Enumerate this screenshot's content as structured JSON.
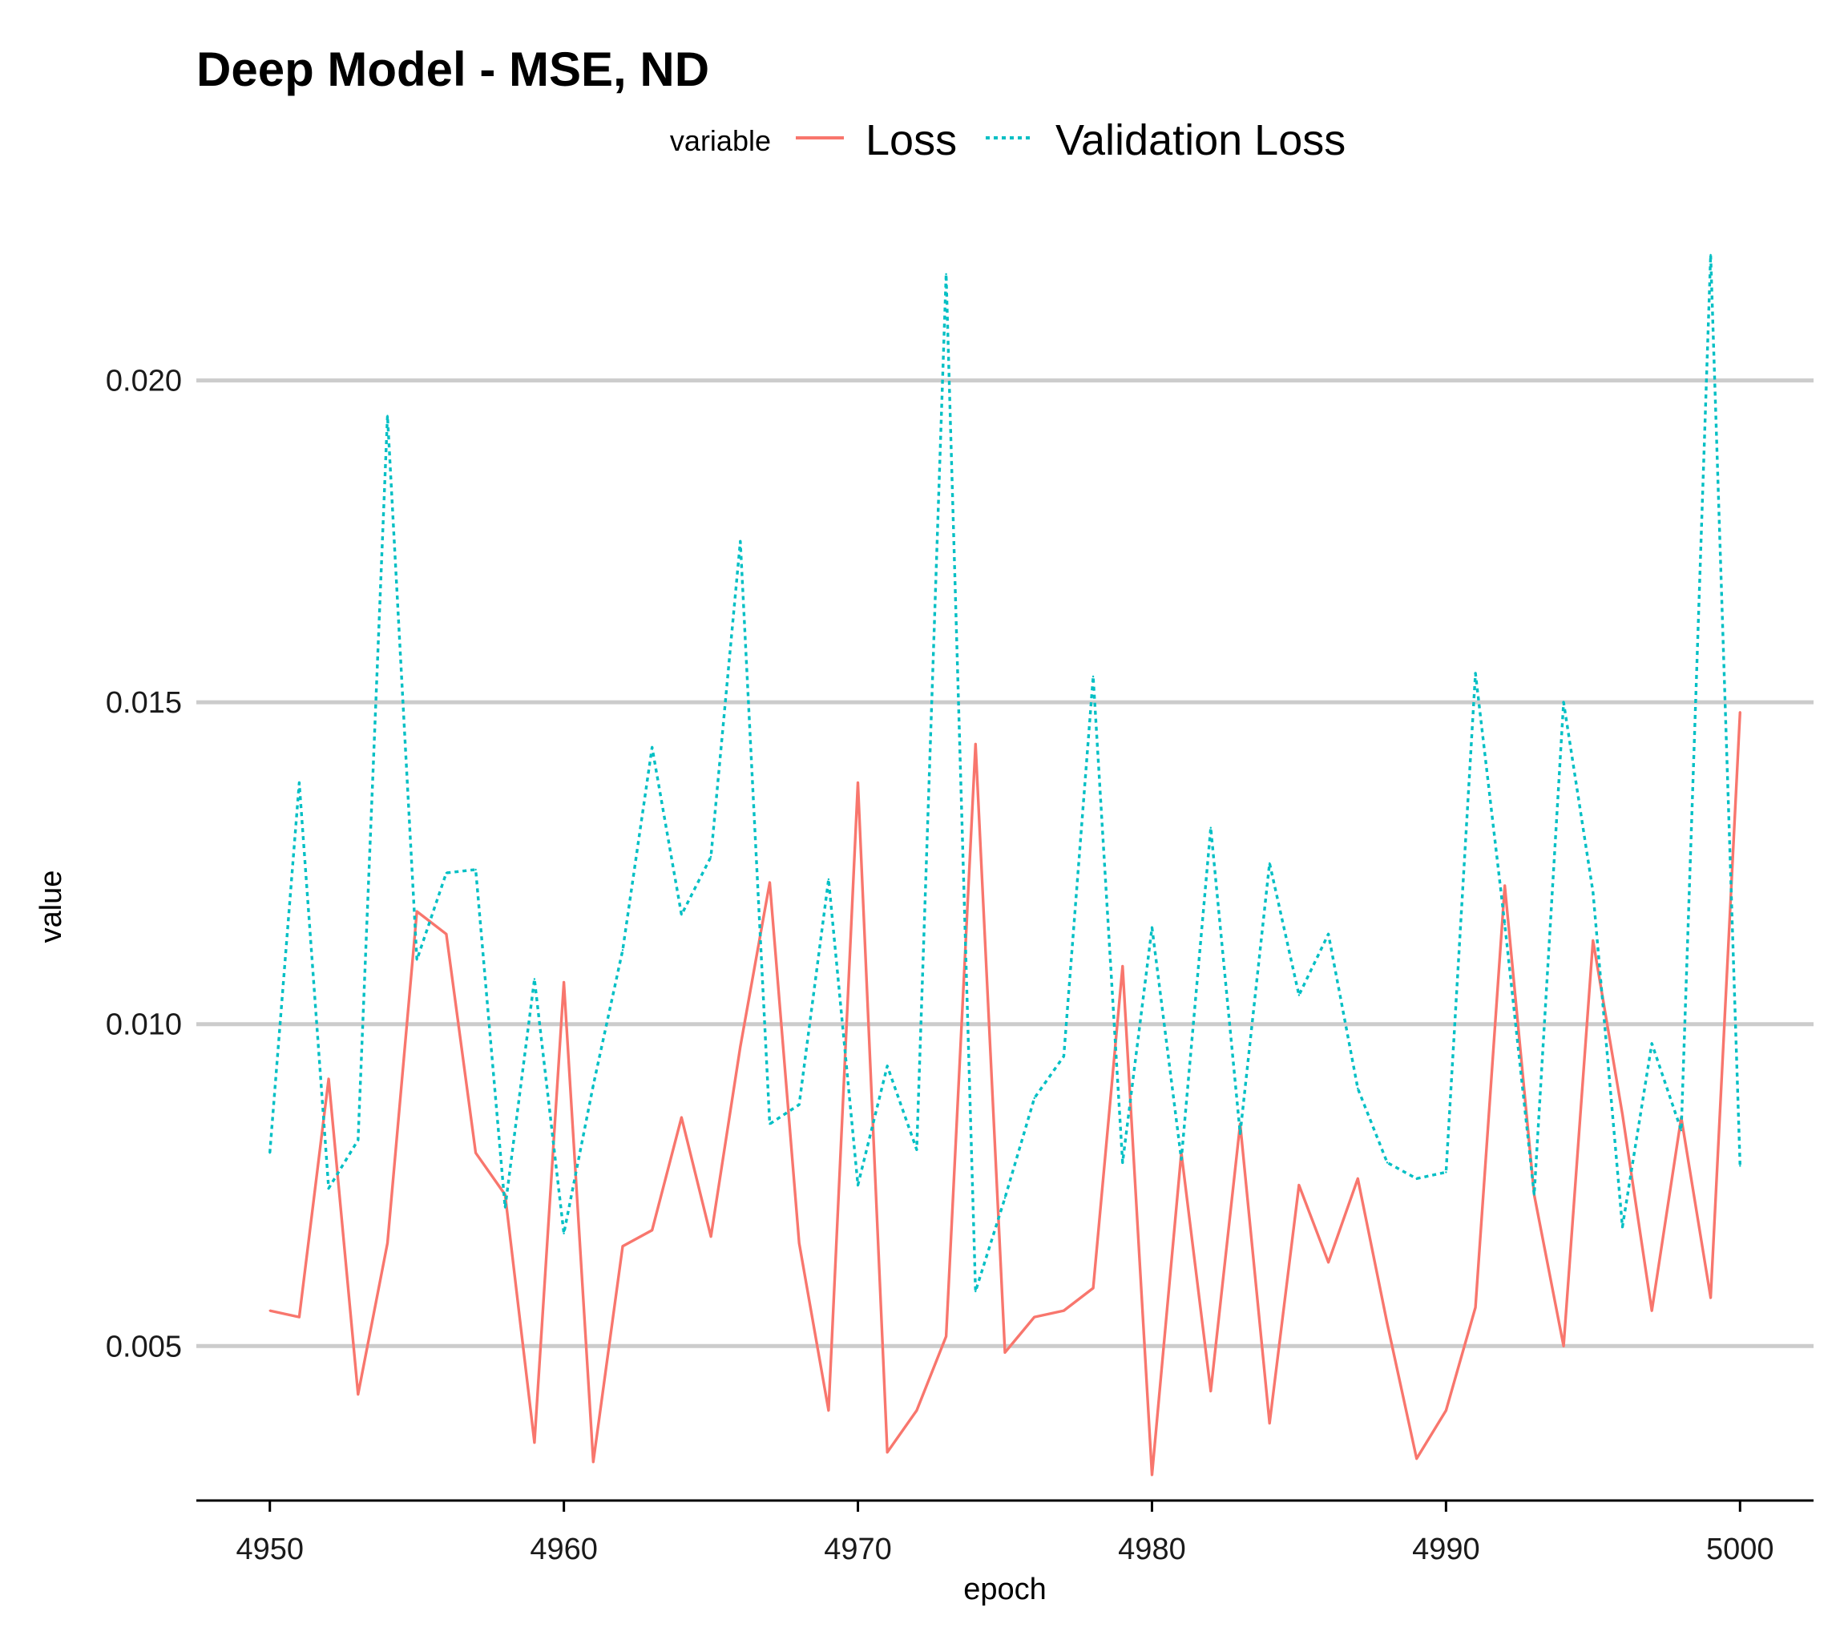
{
  "chart_data": {
    "type": "line",
    "title": "Deep Model - MSE, ND",
    "xlabel": "epoch",
    "ylabel": "value",
    "legend": {
      "title": "variable",
      "position": "top"
    },
    "xlim": [
      4947.5,
      5002.5
    ],
    "ylim": [
      0.0026,
      0.0218
    ],
    "x_ticks": [
      4950,
      4960,
      4970,
      4980,
      4990,
      5000
    ],
    "x_tick_labels": [
      "4950",
      "4960",
      "4970",
      "4980",
      "4990",
      "5000"
    ],
    "y_ticks": [
      0.005,
      0.01,
      0.015,
      0.02
    ],
    "y_tick_labels": [
      "0.005",
      "0.010",
      "0.015",
      "0.020"
    ],
    "grid": "horizontal-major",
    "x": [
      4950,
      4951,
      4952,
      4953,
      4954,
      4955,
      4956,
      4957,
      4958,
      4959,
      4960,
      4961,
      4962,
      4963,
      4964,
      4965,
      4966,
      4967,
      4968,
      4969,
      4970,
      4971,
      4972,
      4973,
      4974,
      4975,
      4976,
      4977,
      4978,
      4979,
      4980,
      4981,
      4982,
      4983,
      4984,
      4985,
      4986,
      4987,
      4988,
      4989,
      4990,
      4991,
      4992,
      4993,
      4994,
      4995,
      4996,
      4997,
      4998,
      4999,
      5000
    ],
    "series": [
      {
        "name": "Loss",
        "color": "#F8766D",
        "dash": "solid",
        "values": [
          0.00555,
          0.00545,
          0.00915,
          0.00425,
          0.0066,
          0.01175,
          0.0114,
          0.008,
          0.00735,
          0.0035,
          0.01065,
          0.0032,
          0.00655,
          0.0068,
          0.00855,
          0.0067,
          0.00965,
          0.0122,
          0.0066,
          0.004,
          0.01375,
          0.00335,
          0.004,
          0.00515,
          0.01435,
          0.0049,
          0.00545,
          0.00555,
          0.0059,
          0.0109,
          0.003,
          0.008,
          0.0043,
          0.00845,
          0.0038,
          0.0075,
          0.0063,
          0.0076,
          0.00535,
          0.00325,
          0.004,
          0.0056,
          0.01215,
          0.00735,
          0.005,
          0.0113,
          0.0086,
          0.00555,
          0.00855,
          0.00575,
          0.01485
        ]
      },
      {
        "name": "Validation Loss",
        "color": "#00BFC4",
        "dash": "dotted",
        "values": [
          0.008,
          0.01375,
          0.00745,
          0.0082,
          0.01945,
          0.011,
          0.01235,
          0.0124,
          0.00715,
          0.0107,
          0.00675,
          0.00905,
          0.01115,
          0.0143,
          0.0117,
          0.0126,
          0.0175,
          0.00845,
          0.00875,
          0.01225,
          0.0075,
          0.00935,
          0.00805,
          0.02165,
          0.00585,
          0.0073,
          0.00885,
          0.0095,
          0.0154,
          0.00785,
          0.0115,
          0.0079,
          0.01305,
          0.0083,
          0.0125,
          0.01045,
          0.0114,
          0.009,
          0.00785,
          0.0076,
          0.0077,
          0.01545,
          0.01155,
          0.00735,
          0.015,
          0.01205,
          0.00685,
          0.0097,
          0.00835,
          0.02195,
          0.0078
        ]
      }
    ]
  }
}
